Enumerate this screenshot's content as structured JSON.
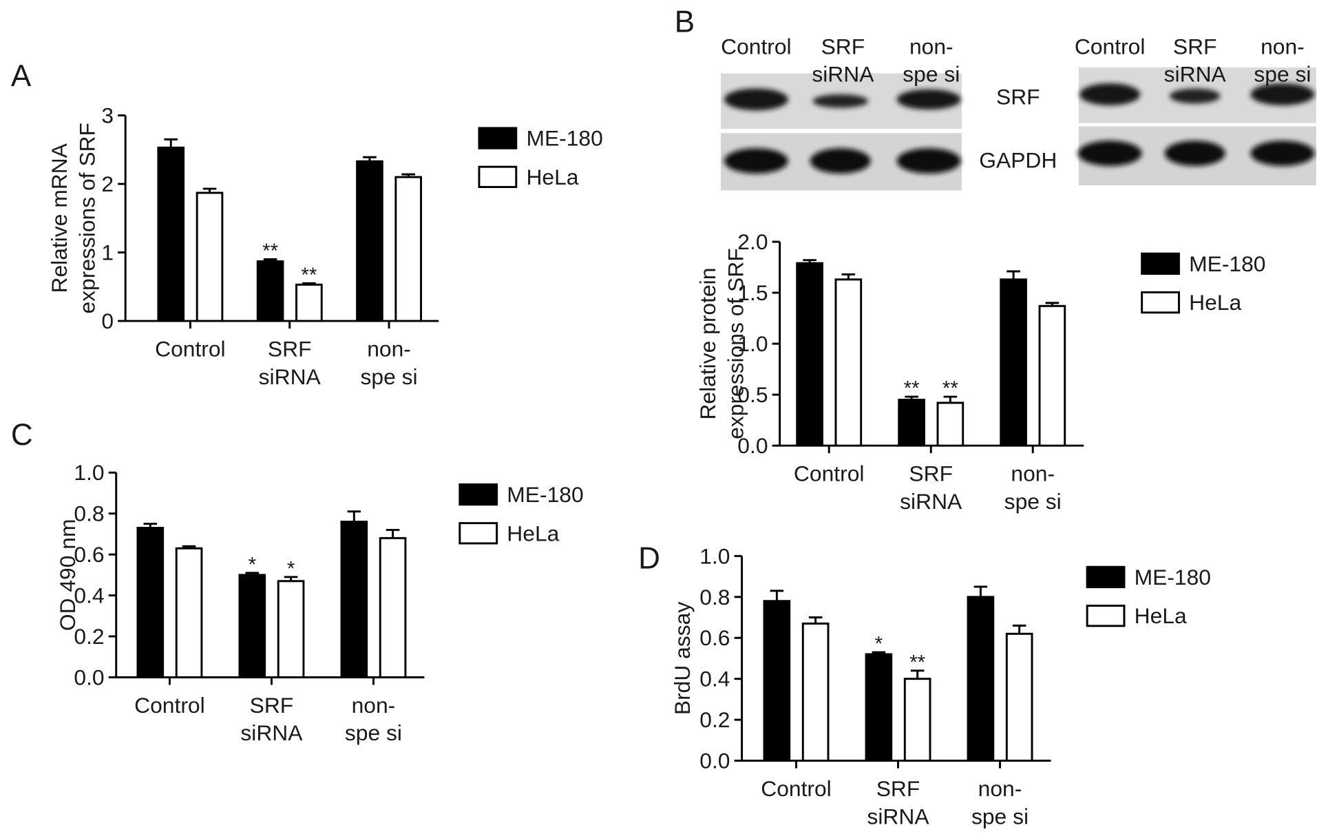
{
  "blot": {
    "panel": "B",
    "lanes": [
      "Control",
      "SRF\nsiRNA",
      "non-\nspe si"
    ],
    "rows": [
      "SRF",
      "GAPDH"
    ]
  },
  "chart_data": [
    {
      "type": "bar",
      "panel": "A",
      "y_label": "Relative mRNA\nexpressions of SRF",
      "categories": [
        "Control",
        "SRF\nsiRNA",
        "non-\nspe si"
      ],
      "ylim": [
        0,
        3
      ],
      "yticks": [
        0,
        1,
        2,
        3
      ],
      "series": [
        {
          "name": "ME-180",
          "color": "#000000",
          "values": [
            2.53,
            0.87,
            2.33
          ],
          "errors": [
            0.12,
            0.03,
            0.06
          ],
          "significance": [
            null,
            "**",
            null
          ]
        },
        {
          "name": "HeLa",
          "color": "#ffffff",
          "values": [
            1.87,
            0.53,
            2.1
          ],
          "errors": [
            0.06,
            0.02,
            0.04
          ],
          "significance": [
            null,
            "**",
            null
          ]
        }
      ]
    },
    {
      "type": "bar",
      "y_label": "Relative protein\nexpressions of SRF",
      "categories": [
        "Control",
        "SRF\nsiRNA",
        "non-\nspe si"
      ],
      "ylim": [
        0,
        2
      ],
      "yticks": [
        {
          "value": 0,
          "label": "0.0"
        },
        0.5,
        {
          "value": 1,
          "label": "1.0"
        },
        1.5,
        {
          "value": 2,
          "label": "2.0"
        }
      ],
      "series": [
        {
          "name": "ME-180",
          "color": "#000000",
          "values": [
            1.79,
            0.45,
            1.63
          ],
          "errors": [
            0.03,
            0.03,
            0.08
          ],
          "significance": [
            null,
            "**",
            null
          ]
        },
        {
          "name": "HeLa",
          "color": "#ffffff",
          "values": [
            1.63,
            0.42,
            1.37
          ],
          "errors": [
            0.05,
            0.06,
            0.03
          ],
          "significance": [
            null,
            "**",
            null
          ]
        }
      ]
    },
    {
      "type": "bar",
      "panel": "C",
      "y_label": "OD 490 nm",
      "categories": [
        "Control",
        "SRF\nsiRNA",
        "non-\nspe si"
      ],
      "ylim": [
        0,
        1
      ],
      "yticks": [
        {
          "value": 0,
          "label": "0.0"
        },
        0.2,
        0.4,
        0.6,
        0.8,
        {
          "value": 1,
          "label": "1.0"
        }
      ],
      "series": [
        {
          "name": "ME-180",
          "color": "#000000",
          "values": [
            0.73,
            0.5,
            0.76
          ],
          "errors": [
            0.02,
            0.01,
            0.05
          ],
          "significance": [
            null,
            "*",
            null
          ]
        },
        {
          "name": "HeLa",
          "color": "#ffffff",
          "values": [
            0.63,
            0.47,
            0.68
          ],
          "errors": [
            0.01,
            0.02,
            0.04
          ],
          "significance": [
            null,
            "*",
            null
          ]
        }
      ]
    },
    {
      "type": "bar",
      "panel": "D",
      "y_label": "BrdU assay",
      "categories": [
        "Control",
        "SRF\nsiRNA",
        "non-\nspe si"
      ],
      "ylim": [
        0,
        1
      ],
      "yticks": [
        {
          "value": 0,
          "label": "0.0"
        },
        0.2,
        0.4,
        0.6,
        0.8,
        {
          "value": 1,
          "label": "1.0"
        }
      ],
      "series": [
        {
          "name": "ME-180",
          "color": "#000000",
          "values": [
            0.78,
            0.52,
            0.8
          ],
          "errors": [
            0.05,
            0.01,
            0.05
          ],
          "significance": [
            null,
            "*",
            null
          ]
        },
        {
          "name": "HeLa",
          "color": "#ffffff",
          "values": [
            0.67,
            0.4,
            0.62
          ],
          "errors": [
            0.03,
            0.04,
            0.04
          ],
          "significance": [
            null,
            "**",
            null
          ]
        }
      ]
    }
  ]
}
